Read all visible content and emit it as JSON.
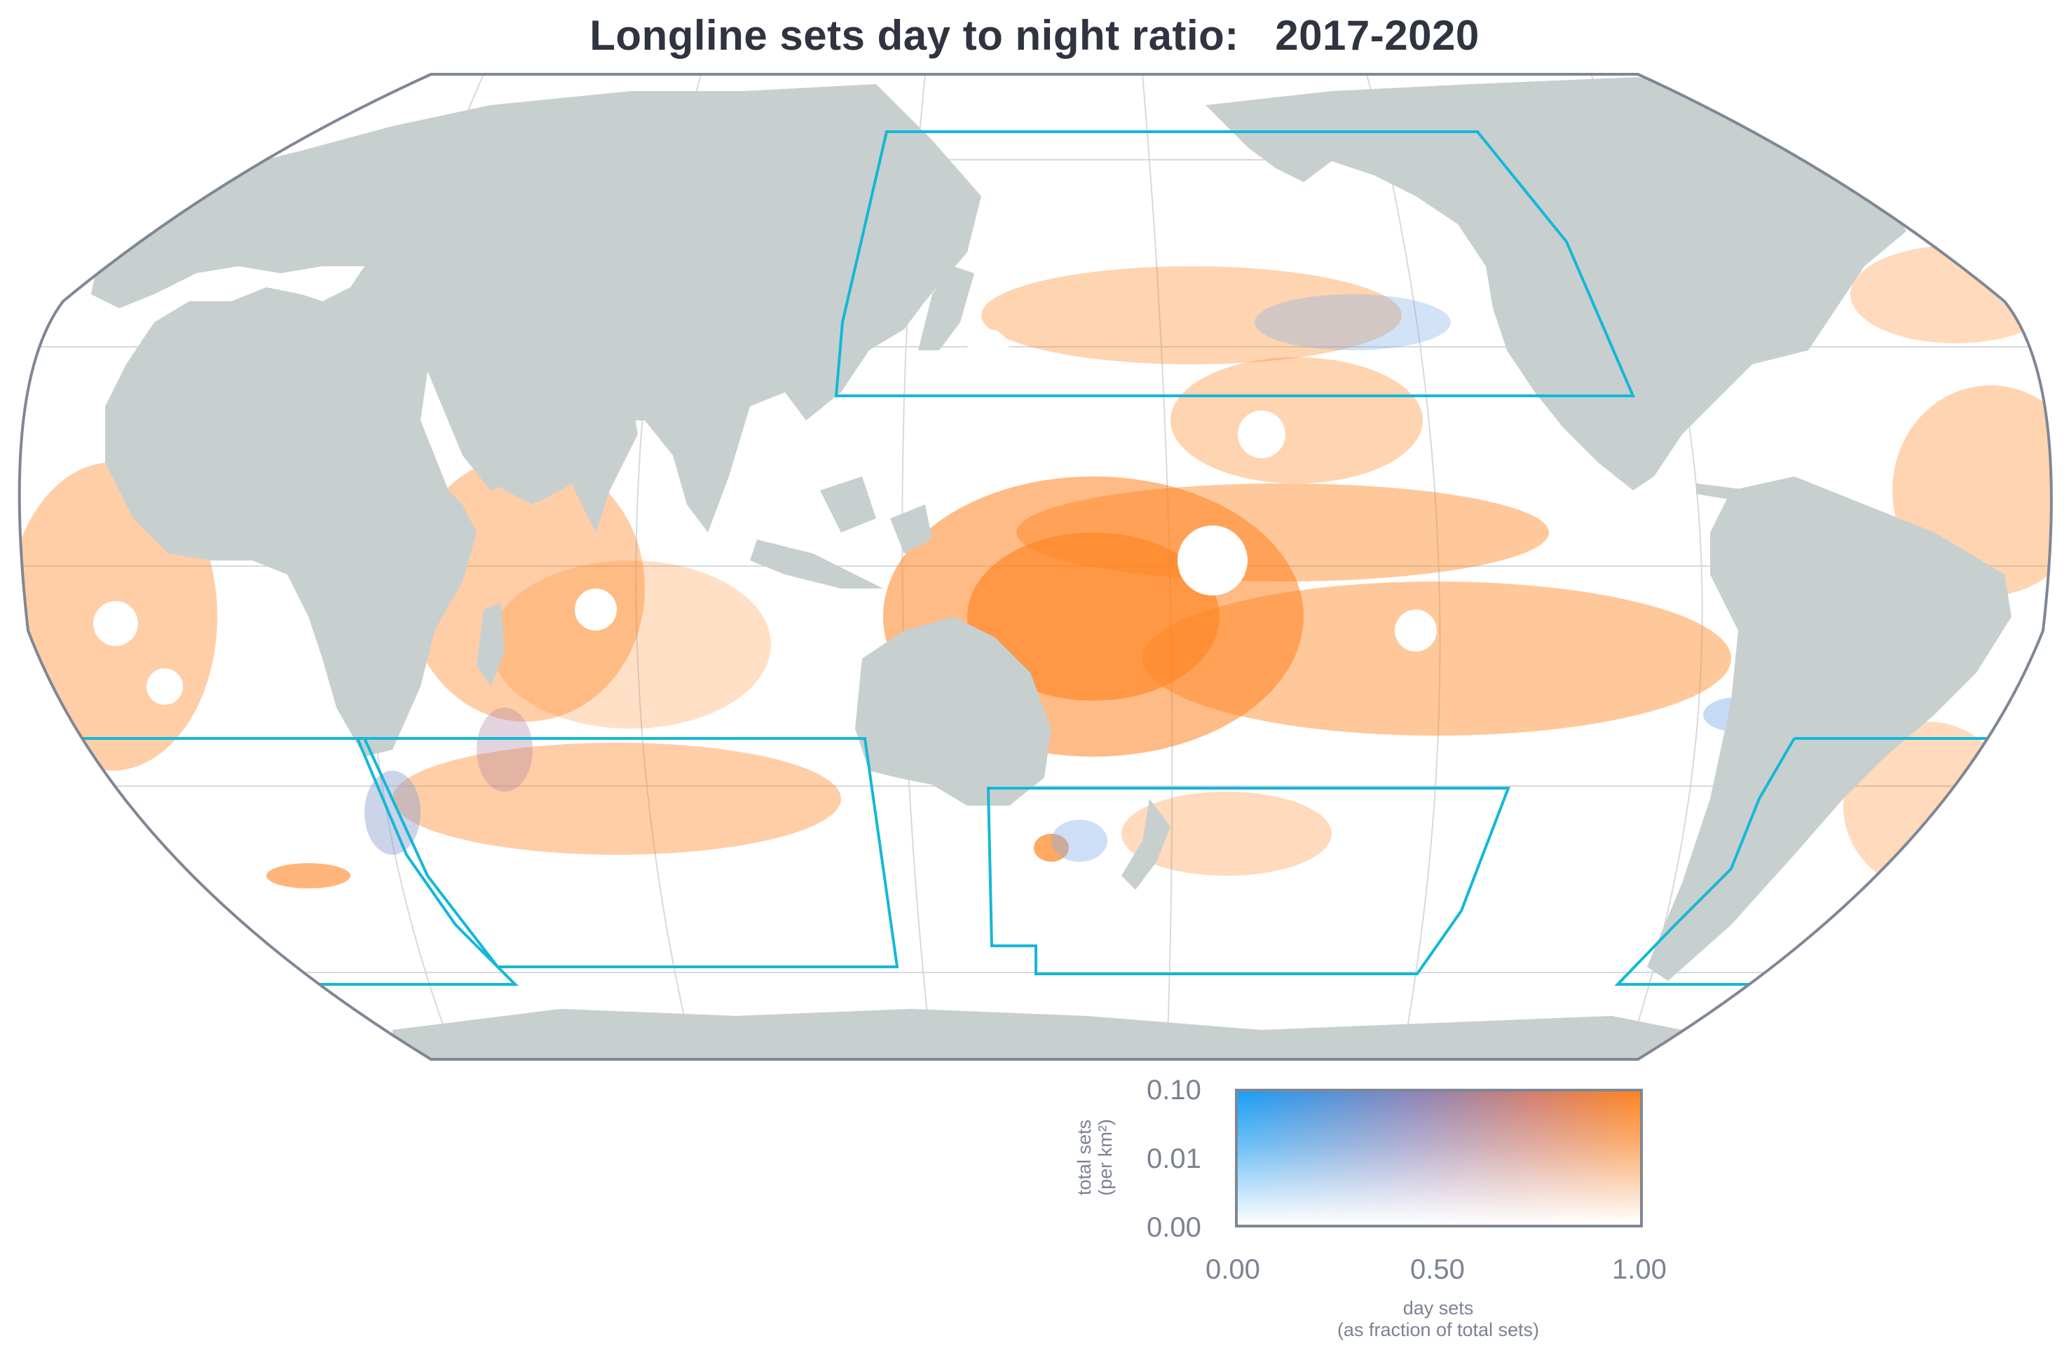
{
  "title": "Longline sets day to night ratio:   2017-2020",
  "colors": {
    "land": "#c8cfcf",
    "ocean": "#ffffff",
    "frame": "#7f8795",
    "graticule": "#d6d9de",
    "region_outline": "#13b8d8",
    "day_orange": "#ff8420",
    "night_blue": "#1a9ff5"
  },
  "map": {
    "projection": "equal-earth-like (Pacific-centred)",
    "regions_highlighted": [
      "North Pacific box",
      "South Atlantic / Indian box",
      "South Pacific box",
      "South-west Atlantic box"
    ]
  },
  "legend": {
    "y_title": "total sets",
    "y_unit": "(per km²)",
    "y_ticks": [
      "0.10",
      "0.01",
      "0.00"
    ],
    "x_ticks": [
      "0.00",
      "0.50",
      "1.00"
    ],
    "x_title": "day sets",
    "x_subtitle": "(as fraction of total sets)"
  }
}
